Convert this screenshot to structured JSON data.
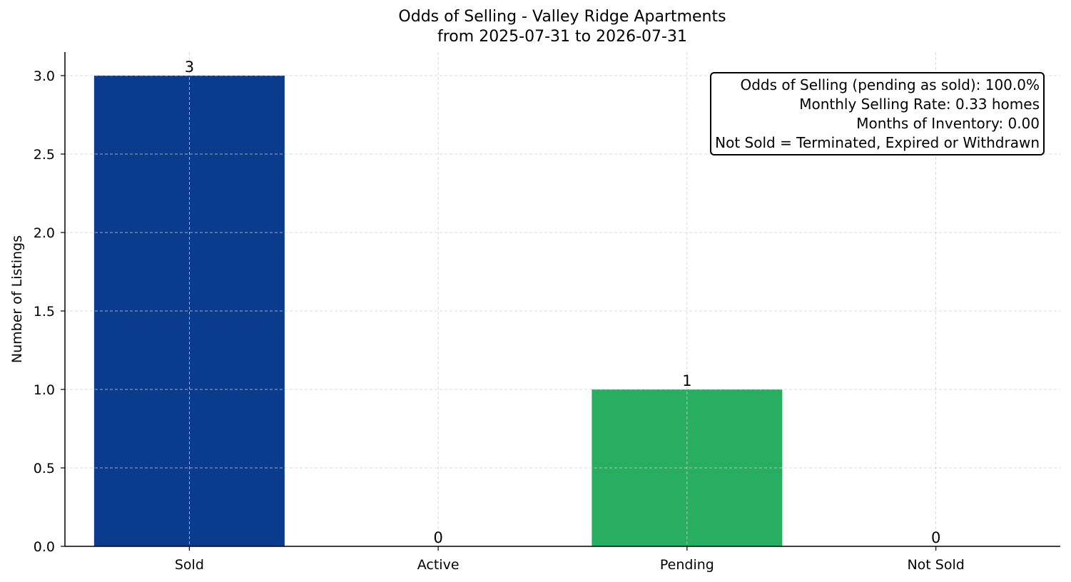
{
  "chart_data": {
    "type": "bar",
    "title": "Odds of Selling - Valley Ridge Apartments",
    "subtitle": "from 2025-07-31 to 2026-07-31",
    "xlabel": "",
    "ylabel": "Number of Listings",
    "categories": [
      "Sold",
      "Active",
      "Pending",
      "Not Sold"
    ],
    "values": [
      3,
      0,
      1,
      0
    ],
    "data_labels": [
      "3",
      "0",
      "1",
      "0"
    ],
    "colors": [
      "#0b3b8c",
      "#0b3b8c",
      "#27ae60",
      "#0b3b8c"
    ],
    "ylim": [
      0,
      3.15
    ],
    "yticks": [
      0.0,
      0.5,
      1.0,
      1.5,
      2.0,
      2.5,
      3.0
    ],
    "ytick_labels": [
      "0.0",
      "0.5",
      "1.0",
      "1.5",
      "2.0",
      "2.5",
      "3.0"
    ],
    "grid": true,
    "annotation_box": {
      "position": "top-right",
      "lines": [
        "Odds of Selling (pending as sold): 100.0%",
        "Monthly Selling Rate: 0.33 homes",
        "Months of Inventory: 0.00",
        "Not Sold = Terminated, Expired or Withdrawn"
      ]
    }
  }
}
